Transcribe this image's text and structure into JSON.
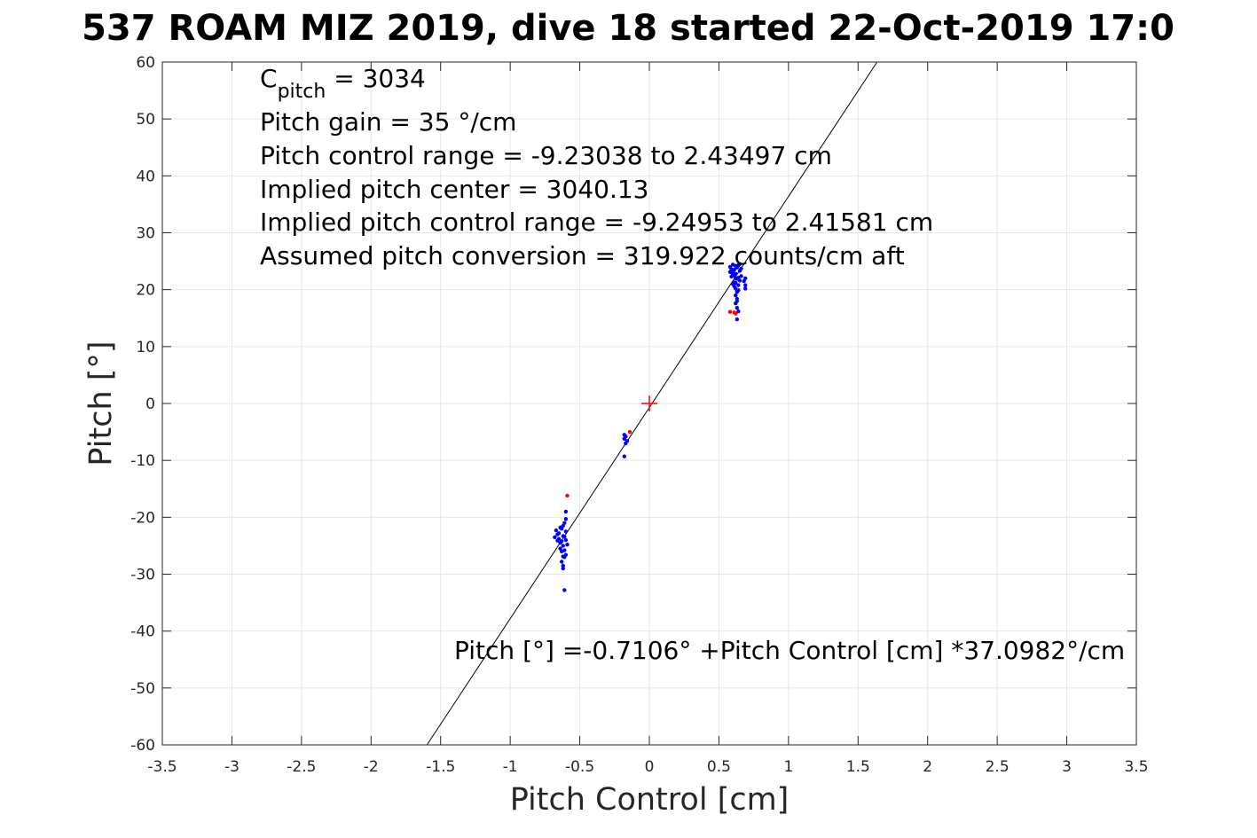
{
  "chart_data": {
    "type": "scatter",
    "title": "537 ROAM MIZ 2019, dive 18 started 22-Oct-2019 17:0",
    "xlabel": "Pitch Control [cm]",
    "ylabel": "Pitch [°]",
    "xlim": [
      -3.5,
      3.5
    ],
    "ylim": [
      -60,
      60
    ],
    "xticks": [
      "-3.5",
      "-3",
      "-2.5",
      "-2",
      "-1.5",
      "-1",
      "-0.5",
      "0",
      "0.5",
      "1",
      "1.5",
      "2",
      "2.5",
      "3",
      "3.5"
    ],
    "yticks": [
      "60",
      "50",
      "40",
      "30",
      "20",
      "10",
      "0",
      "-10",
      "-20",
      "-30",
      "-40",
      "-50",
      "-60"
    ],
    "grid": true,
    "annotations": {
      "c_pitch_main": "C",
      "c_pitch_sub": "pitch",
      "c_pitch_value": " = 3034",
      "pitch_gain": "Pitch gain = 35 °/cm",
      "pitch_control_range": "Pitch control range = -9.23038 to 2.43497 cm",
      "implied_pitch_center": "Implied pitch center = 3040.13",
      "implied_pitch_control_range": "Implied pitch control range = -9.24953 to 2.41581 cm",
      "assumed_pitch_conversion": "Assumed pitch conversion = 319.922 counts/cm aft",
      "fit_equation": "Pitch [°] =-0.7106° +Pitch Control [cm] *37.0982°/cm"
    },
    "fit_line": {
      "intercept": -0.7106,
      "slope": 37.0982,
      "color": "#000000"
    },
    "center_marker": {
      "x": 0,
      "y": 0,
      "color": "#ff0000"
    },
    "series": [
      {
        "color": "#0000ff",
        "points": [
          [
            0.58,
            24.0
          ],
          [
            0.59,
            23.6
          ],
          [
            0.6,
            23.0
          ],
          [
            0.61,
            22.5
          ],
          [
            0.62,
            24.2
          ],
          [
            0.63,
            23.9
          ],
          [
            0.64,
            22.1
          ],
          [
            0.65,
            21.6
          ],
          [
            0.6,
            21.0
          ],
          [
            0.61,
            20.6
          ],
          [
            0.62,
            22.8
          ],
          [
            0.63,
            21.9
          ],
          [
            0.64,
            24.3
          ],
          [
            0.65,
            23.3
          ],
          [
            0.59,
            22.3
          ],
          [
            0.6,
            24.4
          ],
          [
            0.62,
            20.2
          ],
          [
            0.63,
            19.6
          ],
          [
            0.62,
            19.0
          ],
          [
            0.63,
            18.4
          ],
          [
            0.62,
            17.6
          ],
          [
            0.63,
            16.8
          ],
          [
            0.62,
            22.0
          ],
          [
            0.66,
            22.4
          ],
          [
            0.61,
            21.3
          ],
          [
            0.64,
            20.8
          ],
          [
            0.58,
            23.1
          ],
          [
            0.66,
            23.7
          ],
          [
            0.69,
            22.0
          ],
          [
            0.69,
            20.2
          ],
          [
            0.69,
            20.8
          ],
          [
            0.68,
            21.5
          ],
          [
            0.64,
            16.2
          ],
          [
            0.63,
            14.8
          ],
          [
            0.61,
            23.5
          ],
          [
            0.6,
            22.7
          ],
          [
            0.65,
            24.5
          ],
          [
            0.62,
            21.2
          ],
          [
            0.64,
            19.9
          ],
          [
            0.63,
            18.0
          ],
          [
            -0.66,
            -23.0
          ],
          [
            -0.65,
            -23.8
          ],
          [
            -0.64,
            -24.5
          ],
          [
            -0.63,
            -22.0
          ],
          [
            -0.62,
            -25.0
          ],
          [
            -0.61,
            -23.4
          ],
          [
            -0.6,
            -22.5
          ],
          [
            -0.63,
            -26.0
          ],
          [
            -0.62,
            -21.5
          ],
          [
            -0.61,
            -27.0
          ],
          [
            -0.6,
            -24.0
          ],
          [
            -0.64,
            -25.5
          ],
          [
            -0.63,
            -27.8
          ],
          [
            -0.62,
            -28.5
          ],
          [
            -0.61,
            -21.0
          ],
          [
            -0.6,
            -19.0
          ],
          [
            -0.62,
            -29.0
          ],
          [
            -0.61,
            -32.8
          ],
          [
            -0.68,
            -23.5
          ],
          [
            -0.67,
            -22.3
          ],
          [
            -0.59,
            -24.8
          ],
          [
            -0.6,
            -26.6
          ],
          [
            -0.65,
            -22.8
          ],
          [
            -0.64,
            -21.8
          ],
          [
            -0.62,
            -23.3
          ],
          [
            -0.63,
            -24.2
          ],
          [
            -0.66,
            -24.1
          ],
          [
            -0.61,
            -25.8
          ],
          [
            -0.6,
            -20.3
          ],
          [
            -0.62,
            -26.9
          ],
          [
            -0.18,
            -5.5
          ],
          [
            -0.18,
            -6.2
          ],
          [
            -0.17,
            -7.0
          ],
          [
            -0.18,
            -9.3
          ],
          [
            -0.17,
            -5.8
          ],
          [
            -0.16,
            -6.6
          ]
        ]
      },
      {
        "color": "#ff0000",
        "points": [
          [
            0.58,
            16.1
          ],
          [
            0.61,
            16.0
          ],
          [
            0.62,
            15.8
          ],
          [
            -0.59,
            -16.2
          ],
          [
            -0.14,
            -5.0
          ]
        ]
      }
    ]
  }
}
